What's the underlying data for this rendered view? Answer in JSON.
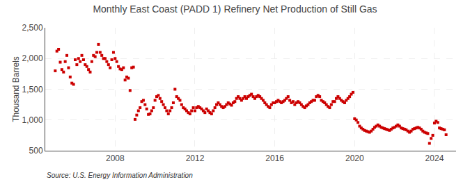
{
  "chart_data": {
    "type": "scatter",
    "title": "Monthly East Coast (PADD 1) Refinery Net Production of Still Gas",
    "ylabel": "Thousand Barrels",
    "annotations": [
      "Source: U.S. Energy Information Administration"
    ],
    "color": "#CC0000",
    "marker": "square",
    "grid": true,
    "xlim": [
      2004.5,
      2025.083
    ],
    "xticks": [
      2008,
      2012,
      2016,
      2020,
      2024
    ],
    "ylim": [
      500,
      2500
    ],
    "yticks": [
      500,
      {
        "value": 1000,
        "label": "1,000"
      },
      {
        "value": 1500,
        "label": "1,500"
      },
      {
        "value": 2000,
        "label": "2,000"
      },
      {
        "value": 2500,
        "label": "2,500"
      }
    ],
    "x": [
      2005.0,
      2005.083,
      2005.167,
      2005.25,
      2005.333,
      2005.417,
      2005.5,
      2005.583,
      2005.667,
      2005.75,
      2005.833,
      2005.917,
      2006.0,
      2006.083,
      2006.167,
      2006.25,
      2006.333,
      2006.417,
      2006.5,
      2006.583,
      2006.667,
      2006.75,
      2006.833,
      2006.917,
      2007.0,
      2007.083,
      2007.167,
      2007.25,
      2007.333,
      2007.417,
      2007.5,
      2007.583,
      2007.667,
      2007.75,
      2007.833,
      2007.917,
      2008.0,
      2008.083,
      2008.167,
      2008.25,
      2008.333,
      2008.417,
      2008.5,
      2008.583,
      2008.667,
      2008.75,
      2008.833,
      2008.917,
      2009.0,
      2009.083,
      2009.167,
      2009.25,
      2009.333,
      2009.417,
      2009.5,
      2009.583,
      2009.667,
      2009.75,
      2009.833,
      2009.917,
      2010.0,
      2010.083,
      2010.167,
      2010.25,
      2010.333,
      2010.417,
      2010.5,
      2010.583,
      2010.667,
      2010.75,
      2010.833,
      2010.917,
      2011.0,
      2011.083,
      2011.167,
      2011.25,
      2011.333,
      2011.417,
      2011.5,
      2011.583,
      2011.667,
      2011.75,
      2011.833,
      2011.917,
      2012.0,
      2012.083,
      2012.167,
      2012.25,
      2012.333,
      2012.417,
      2012.5,
      2012.583,
      2012.667,
      2012.75,
      2012.833,
      2012.917,
      2013.0,
      2013.083,
      2013.167,
      2013.25,
      2013.333,
      2013.417,
      2013.5,
      2013.583,
      2013.667,
      2013.75,
      2013.833,
      2013.917,
      2014.0,
      2014.083,
      2014.167,
      2014.25,
      2014.333,
      2014.417,
      2014.5,
      2014.583,
      2014.667,
      2014.75,
      2014.833,
      2014.917,
      2015.0,
      2015.083,
      2015.167,
      2015.25,
      2015.333,
      2015.417,
      2015.5,
      2015.583,
      2015.667,
      2015.75,
      2015.833,
      2015.917,
      2016.0,
      2016.083,
      2016.167,
      2016.25,
      2016.333,
      2016.417,
      2016.5,
      2016.583,
      2016.667,
      2016.75,
      2016.833,
      2016.917,
      2017.0,
      2017.083,
      2017.167,
      2017.25,
      2017.333,
      2017.417,
      2017.5,
      2017.583,
      2017.667,
      2017.75,
      2017.833,
      2017.917,
      2018.0,
      2018.083,
      2018.167,
      2018.25,
      2018.333,
      2018.417,
      2018.5,
      2018.583,
      2018.667,
      2018.75,
      2018.833,
      2018.917,
      2019.0,
      2019.083,
      2019.167,
      2019.25,
      2019.333,
      2019.417,
      2019.5,
      2019.583,
      2019.667,
      2019.75,
      2019.833,
      2019.917,
      2020.0,
      2020.083,
      2020.167,
      2020.25,
      2020.333,
      2020.417,
      2020.5,
      2020.583,
      2020.667,
      2020.75,
      2020.833,
      2020.917,
      2021.0,
      2021.083,
      2021.167,
      2021.25,
      2021.333,
      2021.417,
      2021.5,
      2021.583,
      2021.667,
      2021.75,
      2021.833,
      2021.917,
      2022.0,
      2022.083,
      2022.167,
      2022.25,
      2022.333,
      2022.417,
      2022.5,
      2022.583,
      2022.667,
      2022.75,
      2022.833,
      2022.917,
      2023.0,
      2023.083,
      2023.167,
      2023.25,
      2023.333,
      2023.417,
      2023.5,
      2023.583,
      2023.667,
      2023.75,
      2023.833,
      2023.917,
      2024.0,
      2024.083,
      2024.167,
      2024.25,
      2024.333,
      2024.417,
      2024.5,
      2024.583
    ],
    "values": [
      1800,
      2120,
      2150,
      1940,
      1820,
      1780,
      1950,
      2050,
      1850,
      1700,
      1600,
      1580,
      1980,
      1900,
      2000,
      1950,
      2050,
      1980,
      1900,
      1870,
      1820,
      1780,
      1950,
      2050,
      2030,
      2100,
      2230,
      2100,
      2050,
      2000,
      2000,
      1950,
      1900,
      1850,
      1980,
      2100,
      2000,
      1950,
      1870,
      1830,
      1820,
      1850,
      1650,
      1700,
      1680,
      1480,
      1850,
      1860,
      1010,
      1080,
      1150,
      1200,
      1300,
      1320,
      1250,
      1180,
      1090,
      1100,
      1150,
      1200,
      1320,
      1380,
      1400,
      1350,
      1300,
      1250,
      1200,
      1150,
      1100,
      1150,
      1200,
      1280,
      1500,
      1380,
      1350,
      1320,
      1250,
      1200,
      1180,
      1150,
      1120,
      1100,
      1150,
      1200,
      1150,
      1200,
      1220,
      1200,
      1180,
      1150,
      1120,
      1180,
      1150,
      1120,
      1100,
      1150,
      1200,
      1250,
      1280,
      1250,
      1220,
      1200,
      1220,
      1250,
      1280,
      1260,
      1240,
      1280,
      1300,
      1350,
      1380,
      1350,
      1320,
      1350,
      1380,
      1350,
      1380,
      1400,
      1420,
      1380,
      1350,
      1380,
      1400,
      1380,
      1350,
      1320,
      1280,
      1250,
      1220,
      1200,
      1250,
      1280,
      1280,
      1300,
      1320,
      1300,
      1280,
      1300,
      1320,
      1350,
      1380,
      1320,
      1280,
      1300,
      1250,
      1280,
      1300,
      1280,
      1250,
      1220,
      1200,
      1230,
      1250,
      1280,
      1300,
      1320,
      1320,
      1380,
      1400,
      1380,
      1320,
      1300,
      1280,
      1250,
      1220,
      1200,
      1250,
      1300,
      1300,
      1350,
      1380,
      1350,
      1320,
      1300,
      1280,
      1320,
      1350,
      1380,
      1420,
      1450,
      1020,
      1000,
      960,
      900,
      870,
      850,
      830,
      820,
      810,
      800,
      820,
      850,
      880,
      900,
      920,
      900,
      880,
      870,
      860,
      850,
      840,
      830,
      850,
      870,
      880,
      900,
      920,
      900,
      870,
      860,
      850,
      840,
      820,
      800,
      820,
      850,
      860,
      870,
      880,
      870,
      850,
      820,
      800,
      790,
      780,
      620,
      700,
      750,
      950,
      980,
      960,
      870,
      860,
      850,
      840,
      760
    ]
  }
}
